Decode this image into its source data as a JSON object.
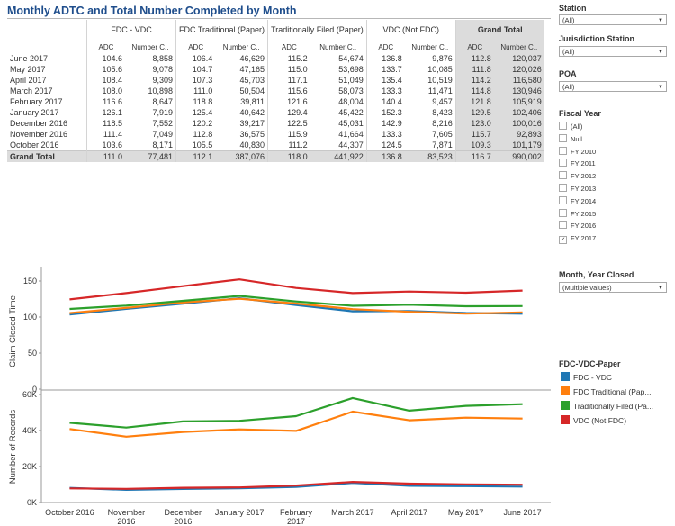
{
  "title": "Monthly ADTC and Total Number Completed by Month",
  "table": {
    "groups": [
      {
        "name": "FDC - VDC"
      },
      {
        "name": "FDC Traditional (Paper)"
      },
      {
        "name": "Traditionally Filed (Paper)"
      },
      {
        "name": "VDC (Not FDC)"
      },
      {
        "name": "Grand Total"
      }
    ],
    "sub_adc": "ADC",
    "sub_num": "Number C..",
    "rows": [
      {
        "label": "June 2017",
        "v": [
          "104.6",
          "8,858",
          "106.4",
          "46,629",
          "115.2",
          "54,674",
          "136.8",
          "9,876",
          "112.8",
          "120,037"
        ]
      },
      {
        "label": "May 2017",
        "v": [
          "105.6",
          "9,078",
          "104.7",
          "47,165",
          "115.0",
          "53,698",
          "133.7",
          "10,085",
          "111.8",
          "120,026"
        ]
      },
      {
        "label": "April 2017",
        "v": [
          "108.4",
          "9,309",
          "107.3",
          "45,703",
          "117.1",
          "51,049",
          "135.4",
          "10,519",
          "114.2",
          "116,580"
        ]
      },
      {
        "label": "March 2017",
        "v": [
          "108.0",
          "10,898",
          "111.0",
          "50,504",
          "115.6",
          "58,073",
          "133.3",
          "11,471",
          "114.8",
          "130,946"
        ]
      },
      {
        "label": "February 2017",
        "v": [
          "116.6",
          "8,647",
          "118.8",
          "39,811",
          "121.6",
          "48,004",
          "140.4",
          "9,457",
          "121.8",
          "105,919"
        ]
      },
      {
        "label": "January 2017",
        "v": [
          "126.1",
          "7,919",
          "125.4",
          "40,642",
          "129.4",
          "45,422",
          "152.3",
          "8,423",
          "129.5",
          "102,406"
        ]
      },
      {
        "label": "December 2016",
        "v": [
          "118.5",
          "7,552",
          "120.2",
          "39,217",
          "122.5",
          "45,031",
          "142.9",
          "8,216",
          "123.0",
          "100,016"
        ]
      },
      {
        "label": "November 2016",
        "v": [
          "111.4",
          "7,049",
          "112.8",
          "36,575",
          "115.9",
          "41,664",
          "133.3",
          "7,605",
          "115.7",
          "92,893"
        ]
      },
      {
        "label": "October 2016",
        "v": [
          "103.6",
          "8,171",
          "105.5",
          "40,830",
          "111.2",
          "44,307",
          "124.5",
          "7,871",
          "109.3",
          "101,179"
        ]
      }
    ],
    "grand": {
      "label": "Grand Total",
      "v": [
        "111.0",
        "77,481",
        "112.1",
        "387,076",
        "118.0",
        "441,922",
        "136.8",
        "83,523",
        "116.7",
        "990,002"
      ]
    }
  },
  "filters": {
    "station": {
      "label": "Station",
      "value": "(All)"
    },
    "jurisdiction": {
      "label": "Jurisdiction Station",
      "value": "(All)"
    },
    "poa": {
      "label": "POA",
      "value": "(All)"
    },
    "fiscal_year": {
      "label": "Fiscal Year",
      "options": [
        {
          "label": "(All)",
          "checked": false
        },
        {
          "label": "Null",
          "checked": false
        },
        {
          "label": "FY 2010",
          "checked": false
        },
        {
          "label": "FY 2011",
          "checked": false
        },
        {
          "label": "FY 2012",
          "checked": false
        },
        {
          "label": "FY 2013",
          "checked": false
        },
        {
          "label": "FY 2014",
          "checked": false
        },
        {
          "label": "FY 2015",
          "checked": false
        },
        {
          "label": "FY 2016",
          "checked": false
        },
        {
          "label": "FY 2017",
          "checked": true
        }
      ]
    },
    "month_year": {
      "label": "Month, Year Closed",
      "value": "(Multiple values)"
    }
  },
  "legend": {
    "title": "FDC-VDC-Paper",
    "items": [
      {
        "label": "FDC - VDC",
        "color": "#1f77b4"
      },
      {
        "label": "FDC Traditional (Pap...",
        "color": "#ff7f0e"
      },
      {
        "label": "Traditionally Filed (Pa...",
        "color": "#2ca02c"
      },
      {
        "label": "VDC (Not FDC)",
        "color": "#d62728"
      }
    ]
  },
  "chart_data": {
    "type": "line",
    "x": [
      "October 2016",
      "November 2016",
      "December 2016",
      "January 2017",
      "February 2017",
      "March 2017",
      "April 2017",
      "May 2017",
      "June 2017"
    ],
    "x_tick_lines": [
      [
        "October 2016"
      ],
      [
        "November",
        "2016"
      ],
      [
        "December",
        "2016"
      ],
      [
        "January 2017"
      ],
      [
        "February",
        "2017"
      ],
      [
        "March 2017"
      ],
      [
        "April 2017"
      ],
      [
        "May 2017"
      ],
      [
        "June 2017"
      ]
    ],
    "panels": [
      {
        "ylabel": "Claim Closed Time",
        "ylim": [
          0,
          160
        ],
        "yticks": [
          0,
          50,
          100,
          150
        ],
        "ytick_labels": [
          "0",
          "50",
          "100",
          "150"
        ],
        "series": [
          {
            "name": "FDC - VDC",
            "color": "#1f77b4",
            "values": [
              103.6,
              111.4,
              118.5,
              126.1,
              116.6,
              108.0,
              108.4,
              105.6,
              104.6
            ]
          },
          {
            "name": "FDC Traditional (Paper)",
            "color": "#ff7f0e",
            "values": [
              105.5,
              112.8,
              120.2,
              125.4,
              118.8,
              111.0,
              107.3,
              104.7,
              106.4
            ]
          },
          {
            "name": "Traditionally Filed (Paper)",
            "color": "#2ca02c",
            "values": [
              111.2,
              115.9,
              122.5,
              129.4,
              121.6,
              115.6,
              117.1,
              115.0,
              115.2
            ]
          },
          {
            "name": "VDC (Not FDC)",
            "color": "#d62728",
            "values": [
              124.5,
              133.3,
              142.9,
              152.3,
              140.4,
              133.3,
              135.4,
              133.7,
              136.8
            ]
          }
        ]
      },
      {
        "ylabel": "Number of Records",
        "ylim": [
          0,
          62000
        ],
        "yticks": [
          0,
          20000,
          40000,
          60000
        ],
        "ytick_labels": [
          "0K",
          "20K",
          "40K",
          "60K"
        ],
        "series": [
          {
            "name": "FDC - VDC",
            "color": "#1f77b4",
            "values": [
              8171,
              7049,
              7552,
              7919,
              8647,
              10898,
              9309,
              9078,
              8858
            ]
          },
          {
            "name": "FDC Traditional (Paper)",
            "color": "#ff7f0e",
            "values": [
              40830,
              36575,
              39217,
              40642,
              39811,
              50504,
              45703,
              47165,
              46629
            ]
          },
          {
            "name": "Traditionally Filed (Paper)",
            "color": "#2ca02c",
            "values": [
              44307,
              41664,
              45031,
              45422,
              48004,
              58073,
              51049,
              53698,
              54674
            ]
          },
          {
            "name": "VDC (Not FDC)",
            "color": "#d62728",
            "values": [
              7871,
              7605,
              8216,
              8423,
              9457,
              11471,
              10519,
              10085,
              9876
            ]
          }
        ]
      }
    ]
  }
}
